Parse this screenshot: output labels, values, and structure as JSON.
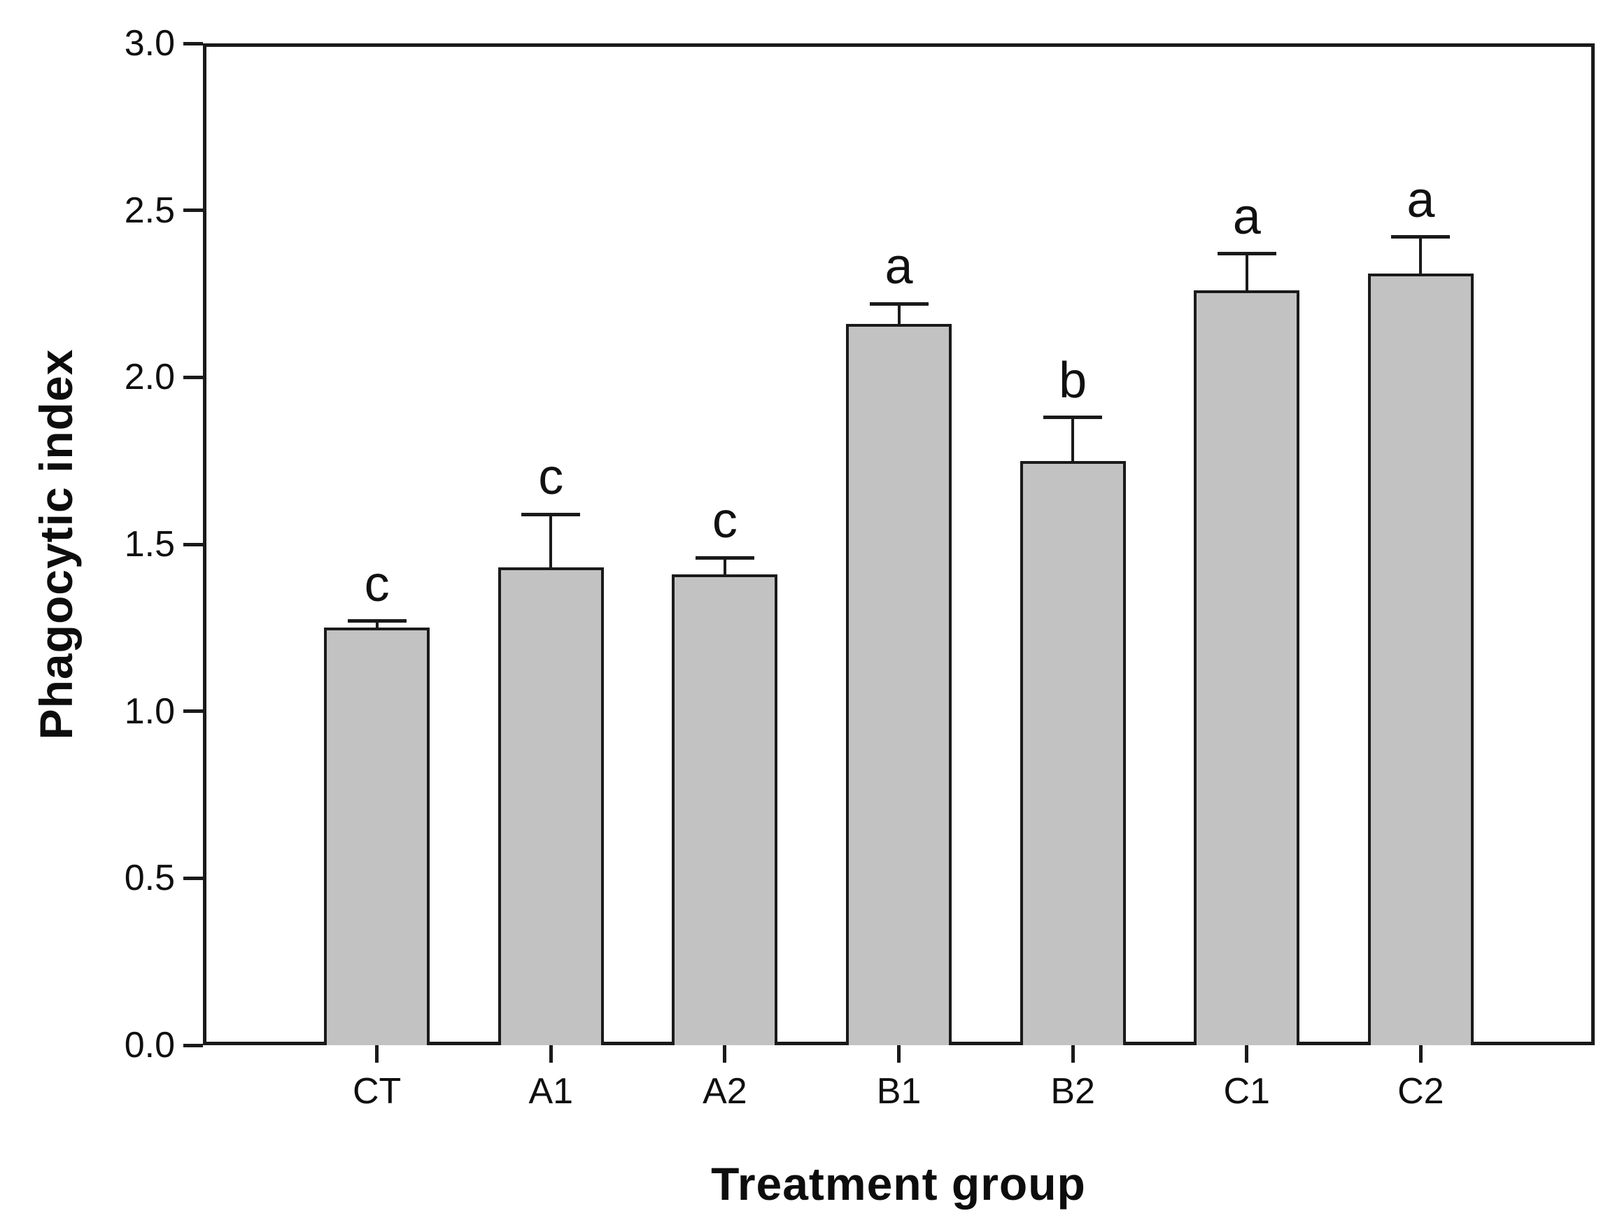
{
  "figure": {
    "background_color": "#ffffff",
    "text_color": "#0f0f0f"
  },
  "chart_data": {
    "type": "bar",
    "title": "",
    "xlabel": "Treatment group",
    "ylabel": "Phagocytic index",
    "categories": [
      "CT",
      "A1",
      "A2",
      "B1",
      "B2",
      "C1",
      "C2"
    ],
    "series": [
      {
        "name": "Phagocytic index",
        "values": [
          1.25,
          1.43,
          1.41,
          2.16,
          1.75,
          2.26,
          2.31
        ],
        "errors_plus": [
          0.02,
          0.16,
          0.05,
          0.06,
          0.13,
          0.11,
          0.11
        ]
      }
    ],
    "significance_letters": [
      "c",
      "c",
      "c",
      "a",
      "b",
      "a",
      "a"
    ],
    "ylim": [
      0.0,
      3.0
    ],
    "ytick_labels": [
      "0.0",
      "0.5",
      "1.0",
      "1.5",
      "2.0",
      "2.5",
      "3.0"
    ],
    "ytick_values": [
      0.0,
      0.5,
      1.0,
      1.5,
      2.0,
      2.5,
      3.0
    ],
    "grid": "off",
    "legend_position": "none",
    "bar_fill_color": "#c2c2c2",
    "bar_border_color": "#1a1a1a",
    "axis_color": "#1a1a1a",
    "error_bar_color": "#1a1a1a"
  }
}
